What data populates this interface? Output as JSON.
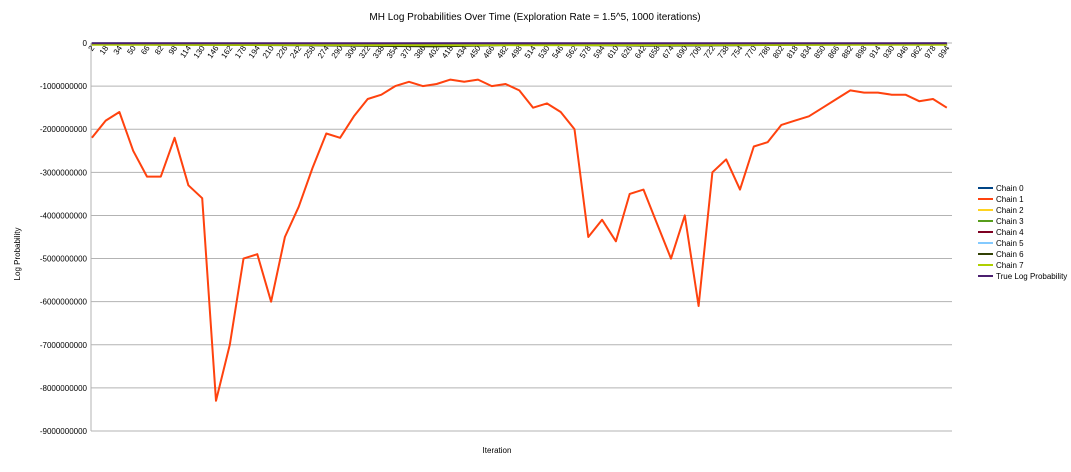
{
  "chart_data": {
    "type": "line",
    "title": "MH Log Probabilities Over Time (Exploration Rate = 1.5^5, 1000 iterations)",
    "x_label": "Iteration",
    "y_label": "Log Probability",
    "xlim": [
      1,
      1000
    ],
    "xticks": [
      2,
      18,
      34,
      50,
      66,
      82,
      98,
      114,
      130,
      146,
      162,
      178,
      194,
      210,
      226,
      242,
      258,
      274,
      290,
      306,
      322,
      338,
      354,
      370,
      386,
      402,
      418,
      434,
      450,
      466,
      482,
      498,
      514,
      530,
      546,
      562,
      578,
      594,
      610,
      626,
      642,
      658,
      674,
      690,
      706,
      722,
      738,
      754,
      770,
      786,
      802,
      818,
      834,
      850,
      866,
      882,
      898,
      914,
      930,
      946,
      962,
      978,
      994
    ],
    "ylim": [
      -9000000000,
      0
    ],
    "yticks": [
      0,
      -1000000000,
      -2000000000,
      -3000000000,
      -4000000000,
      -5000000000,
      -6000000000,
      -7000000000,
      -8000000000,
      -9000000000
    ],
    "grid": true,
    "legend": "right",
    "x": [
      2,
      18,
      34,
      50,
      66,
      82,
      98,
      114,
      130,
      146,
      162,
      178,
      194,
      210,
      226,
      242,
      258,
      274,
      290,
      306,
      322,
      338,
      354,
      370,
      386,
      402,
      418,
      434,
      450,
      466,
      482,
      498,
      514,
      530,
      546,
      562,
      578,
      594,
      610,
      626,
      642,
      658,
      674,
      690,
      706,
      722,
      738,
      754,
      770,
      786,
      802,
      818,
      834,
      850,
      866,
      882,
      898,
      914,
      930,
      946,
      962,
      978,
      994
    ],
    "series": [
      {
        "name": "Chain 0",
        "color": "#004586",
        "x": [
          2,
          250,
          500,
          750,
          994
        ],
        "values": [
          -10000000,
          -15000000,
          -10000000,
          -20000000,
          -10000000
        ]
      },
      {
        "name": "Chain 1",
        "color": "#ff420e",
        "values": [
          -2200000000,
          -1800000000,
          -1600000000,
          -2500000000,
          -3100000000,
          -3100000000,
          -2200000000,
          -3300000000,
          -3600000000,
          -8300000000,
          -7000000000,
          -5000000000,
          -4900000000,
          -6000000000,
          -4500000000,
          -3800000000,
          -2900000000,
          -2100000000,
          -2200000000,
          -1700000000,
          -1300000000,
          -1200000000,
          -1000000000,
          -900000000,
          -1000000000,
          -950000000,
          -850000000,
          -900000000,
          -850000000,
          -1000000000,
          -950000000,
          -1100000000,
          -1500000000,
          -1400000000,
          -1600000000,
          -2000000000,
          -4500000000,
          -4100000000,
          -4600000000,
          -3500000000,
          -3400000000,
          -4200000000,
          -5000000000,
          -4000000000,
          -6100000000,
          -3000000000,
          -2700000000,
          -3400000000,
          -2400000000,
          -2300000000,
          -1900000000,
          -1800000000,
          -1700000000,
          -1500000000,
          -1300000000,
          -1100000000,
          -1150000000,
          -1150000000,
          -1200000000,
          -1200000000,
          -1350000000,
          -1300000000,
          -1500000000
        ]
      },
      {
        "name": "Chain 2",
        "color": "#ffd320",
        "x": [
          2,
          250,
          500,
          750,
          994
        ],
        "values": [
          -20000000,
          -30000000,
          -25000000,
          -30000000,
          -20000000
        ]
      },
      {
        "name": "Chain 3",
        "color": "#579d1c",
        "x": [
          2,
          250,
          500,
          750,
          994
        ],
        "values": [
          -30000000,
          -40000000,
          -35000000,
          -40000000,
          -30000000
        ]
      },
      {
        "name": "Chain 4",
        "color": "#7e0021",
        "x": [
          2,
          250,
          500,
          750,
          994
        ],
        "values": [
          -15000000,
          -25000000,
          -20000000,
          -25000000,
          -15000000
        ]
      },
      {
        "name": "Chain 5",
        "color": "#83caff",
        "x": [
          2,
          250,
          500,
          750,
          994
        ],
        "values": [
          -10000000,
          -20000000,
          -15000000,
          -20000000,
          -10000000
        ]
      },
      {
        "name": "Chain 6",
        "color": "#314004",
        "x": [
          2,
          250,
          400,
          500,
          650,
          750,
          994
        ],
        "values": [
          -30000000,
          -50000000,
          -80000000,
          -40000000,
          -60000000,
          -50000000,
          -20000000
        ]
      },
      {
        "name": "Chain 7",
        "color": "#aecf00",
        "x": [
          2,
          250,
          500,
          750,
          994
        ],
        "values": [
          -40000000,
          -45000000,
          -50000000,
          -45000000,
          -40000000
        ]
      },
      {
        "name": "True Log Probability",
        "color": "#4b1f6f",
        "x": [
          2,
          994
        ],
        "values": [
          -5000000,
          -5000000
        ]
      }
    ]
  }
}
